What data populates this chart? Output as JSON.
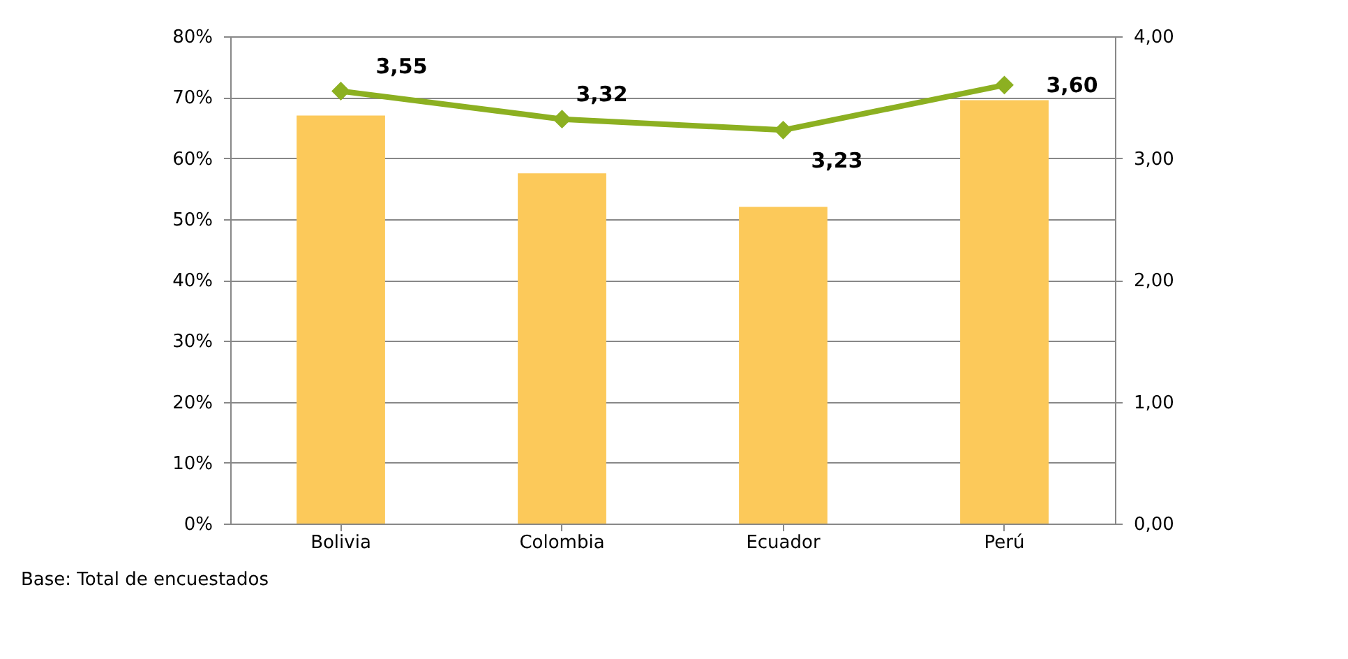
{
  "chart_data": {
    "type": "bar",
    "categories": [
      "Bolivia",
      "Colombia",
      "Ecuador",
      "Perú"
    ],
    "series": [
      {
        "color": "#fcc95a",
        "values": [
          67,
          57.5,
          52,
          69.5
        ]
      },
      {
        "type": "line",
        "axis": "y2",
        "color": "#8cb021",
        "marker": "diamond",
        "values": [
          3.55,
          3.32,
          3.23,
          3.6
        ],
        "value_labels": [
          "3,55",
          "3,32",
          "3,23",
          "3,60"
        ]
      }
    ],
    "ylim": [
      0,
      80
    ],
    "yticks": [
      {
        "value": 0,
        "label": "0%"
      },
      {
        "value": 10,
        "label": "10%"
      },
      {
        "value": 20,
        "label": "20%"
      },
      {
        "value": 30,
        "label": "30%"
      },
      {
        "value": 40,
        "label": "40%"
      },
      {
        "value": 50,
        "label": "50%"
      },
      {
        "value": 60,
        "label": "60%"
      },
      {
        "value": 70,
        "label": "70%"
      },
      {
        "value": 80,
        "label": "80%"
      }
    ],
    "y2lim": [
      0,
      4
    ],
    "y2ticks": [
      {
        "value": 0,
        "label": "0,00"
      },
      {
        "value": 1,
        "label": "1,00"
      },
      {
        "value": 2,
        "label": "2,00"
      },
      {
        "value": 3,
        "label": "3,00"
      },
      {
        "value": 4,
        "label": "4,00"
      }
    ],
    "grid": "y",
    "annotations": [
      "Base: Total de encuestados"
    ]
  }
}
